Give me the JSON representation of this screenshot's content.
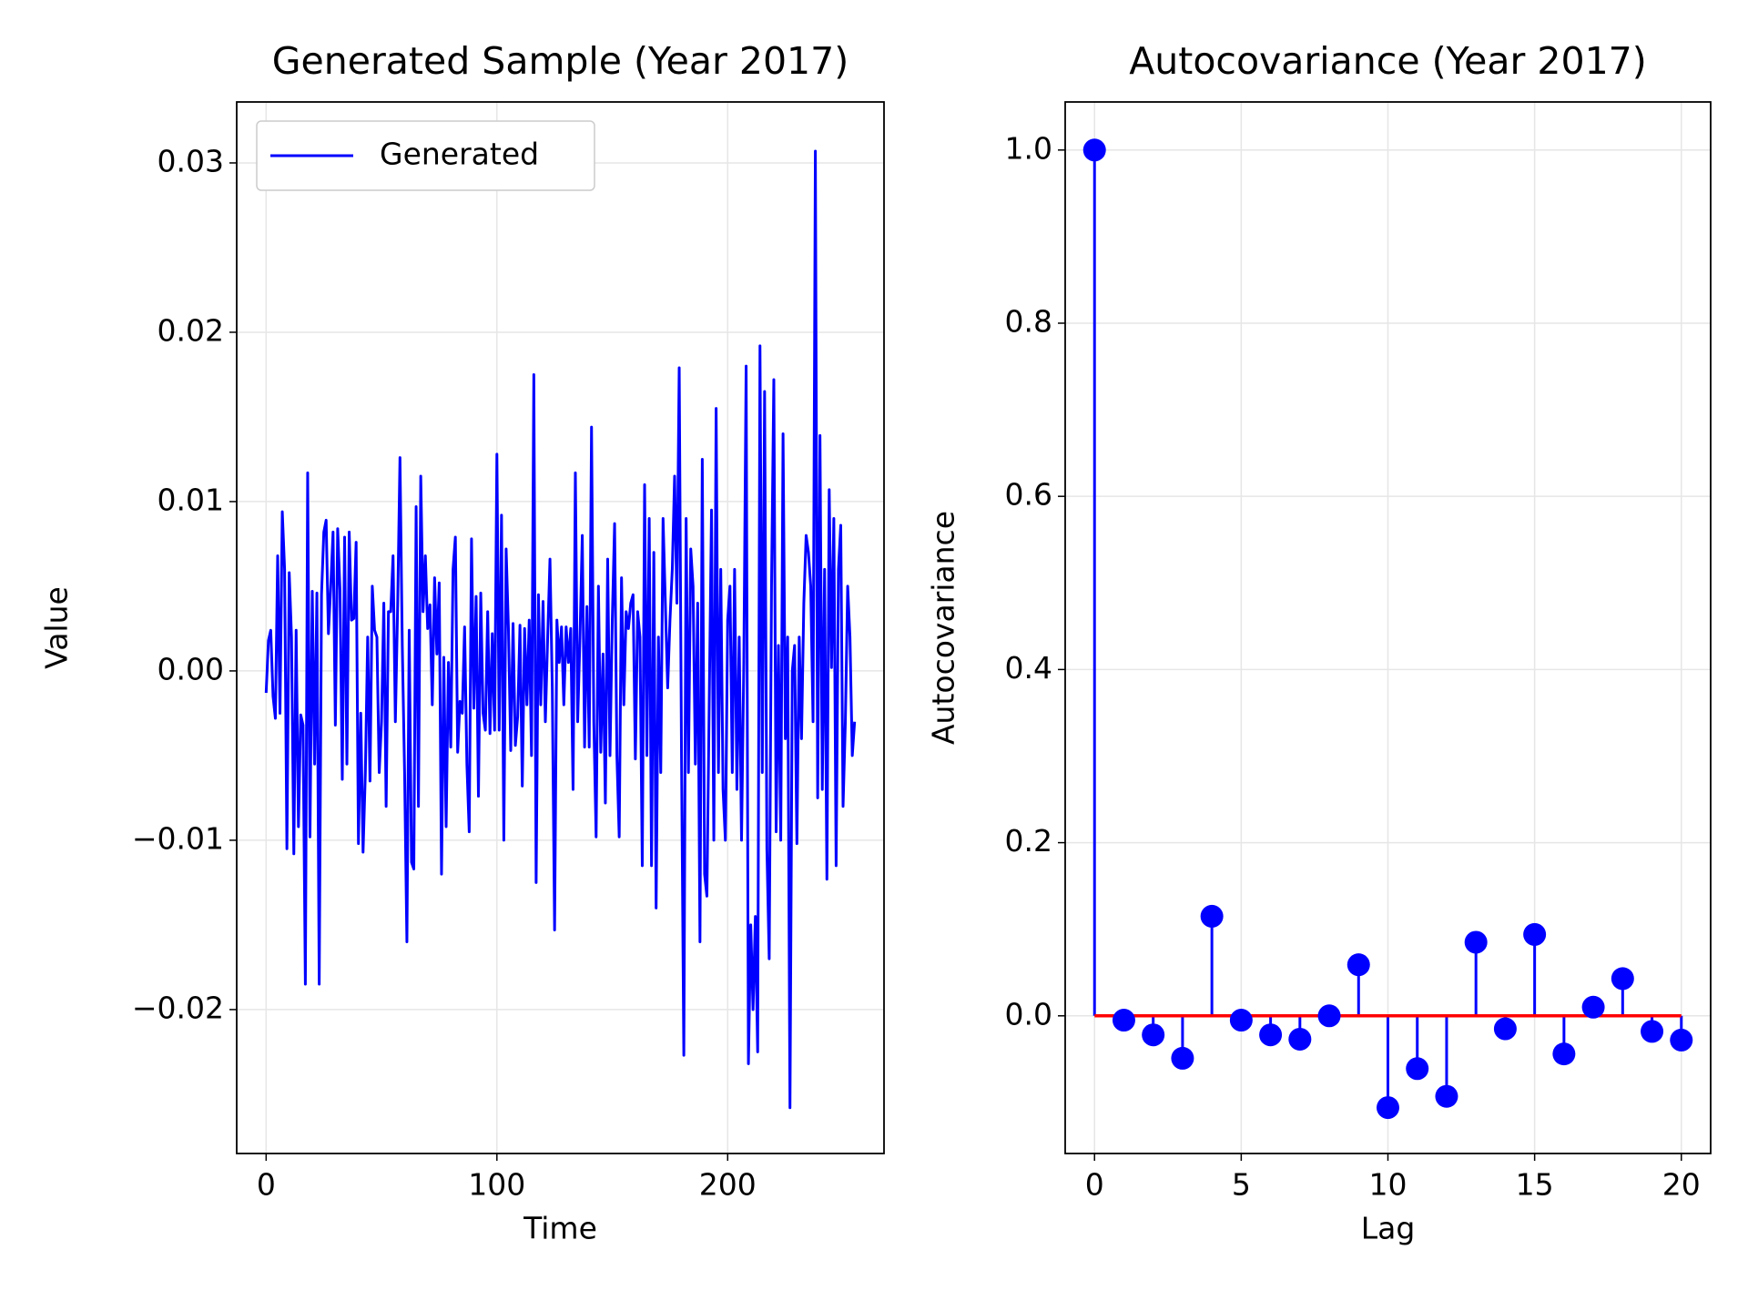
{
  "chart_data": [
    {
      "type": "line",
      "title": "Generated Sample (Year 2017)",
      "xlabel": "Time",
      "ylabel": "Value",
      "x": [
        0,
        1,
        2,
        3,
        4,
        5,
        6,
        7,
        8,
        9,
        10,
        11,
        12,
        13,
        14,
        15,
        16,
        17,
        18,
        19,
        20,
        21,
        22,
        23,
        24,
        25,
        26,
        27,
        28,
        29,
        30,
        31,
        32,
        33,
        34,
        35,
        36,
        37,
        38,
        39,
        40,
        41,
        42,
        43,
        44,
        45,
        46,
        47,
        48,
        49,
        50,
        51,
        52,
        53,
        54,
        55,
        56,
        57,
        58,
        59,
        60,
        61,
        62,
        63,
        64,
        65,
        66,
        67,
        68,
        69,
        70,
        71,
        72,
        73,
        74,
        75,
        76,
        77,
        78,
        79,
        80,
        81,
        82,
        83,
        84,
        85,
        86,
        87,
        88,
        89,
        90,
        91,
        92,
        93,
        94,
        95,
        96,
        97,
        98,
        99,
        100,
        101,
        102,
        103,
        104,
        105,
        106,
        107,
        108,
        109,
        110,
        111,
        112,
        113,
        114,
        115,
        116,
        117,
        118,
        119,
        120,
        121,
        122,
        123,
        124,
        125,
        126,
        127,
        128,
        129,
        130,
        131,
        132,
        133,
        134,
        135,
        136,
        137,
        138,
        139,
        140,
        141,
        142,
        143,
        144,
        145,
        146,
        147,
        148,
        149,
        150,
        151,
        152,
        153,
        154,
        155,
        156,
        157,
        158,
        159,
        160,
        161,
        162,
        163,
        164,
        165,
        166,
        167,
        168,
        169,
        170,
        171,
        172,
        173,
        174,
        175,
        176,
        177,
        178,
        179,
        180,
        181,
        182,
        183,
        184,
        185,
        186,
        187,
        188,
        189,
        190,
        191,
        192,
        193,
        194,
        195,
        196,
        197,
        198,
        199,
        200,
        201,
        202,
        203,
        204,
        205,
        206,
        207,
        208,
        209,
        210,
        211,
        212,
        213,
        214,
        215,
        216,
        217,
        218,
        219,
        220,
        221,
        222,
        223,
        224,
        225,
        226,
        227,
        228,
        229,
        230,
        231,
        232,
        233,
        234,
        235,
        236,
        237,
        238,
        239,
        240,
        241,
        242,
        243,
        244,
        245,
        246,
        247,
        248,
        249,
        250,
        251,
        252,
        253,
        254,
        255
      ],
      "series": [
        {
          "name": "Generated",
          "color": "#0000ff",
          "values": [
            -0.0013,
            0.0018,
            0.0024,
            -0.0015,
            -0.0028,
            0.0068,
            -0.0025,
            0.0094,
            0.006,
            -0.0105,
            0.0058,
            0.002,
            -0.0108,
            0.0024,
            -0.0092,
            -0.0026,
            -0.0032,
            -0.0185,
            0.0117,
            -0.0098,
            0.0047,
            -0.0055,
            0.0046,
            -0.0185,
            0.0045,
            0.0082,
            0.0089,
            0.0022,
            0.005,
            0.0082,
            -0.0032,
            0.0084,
            0.0048,
            -0.0064,
            0.0079,
            -0.0055,
            0.0082,
            0.003,
            0.0031,
            0.0076,
            -0.0102,
            -0.0025,
            -0.0107,
            -0.006,
            0.002,
            -0.0065,
            0.005,
            0.0024,
            0.002,
            -0.006,
            -0.003,
            0.004,
            -0.008,
            0.0035,
            0.0035,
            0.0068,
            -0.003,
            0.0039,
            0.0126,
            0.0015,
            -0.006,
            -0.016,
            0.0024,
            -0.0113,
            -0.0117,
            0.0097,
            -0.008,
            0.0115,
            0.0035,
            0.0068,
            0.0025,
            0.0039,
            -0.002,
            0.0055,
            0.001,
            0.0052,
            -0.012,
            0.0008,
            -0.0092,
            0.0005,
            -0.0045,
            0.006,
            0.0079,
            -0.0048,
            -0.0018,
            -0.0025,
            0.0026,
            -0.0055,
            -0.0095,
            0.0078,
            -0.0022,
            0.0044,
            -0.0074,
            0.0046,
            -0.0025,
            -0.0035,
            0.0035,
            -0.0037,
            0.0022,
            -0.0035,
            0.0128,
            -0.0035,
            0.0092,
            -0.01,
            0.0072,
            0.0025,
            -0.0047,
            0.0028,
            -0.0044,
            -0.0027,
            0.0027,
            -0.0068,
            0.0025,
            -0.002,
            0.003,
            -0.005,
            0.0175,
            -0.0125,
            0.0045,
            -0.002,
            0.0041,
            -0.003,
            0.002,
            0.0066,
            -0.001,
            -0.0153,
            0.003,
            0.0005,
            0.0026,
            -0.002,
            0.0026,
            0.0005,
            0.0025,
            -0.007,
            0.0117,
            -0.003,
            0.002,
            0.008,
            -0.0045,
            0.0038,
            -0.0045,
            0.0144,
            -0.003,
            -0.0098,
            0.005,
            -0.0048,
            0.001,
            -0.0078,
            0.0066,
            -0.005,
            0.003,
            0.0087,
            -0.005,
            -0.0098,
            0.0055,
            -0.002,
            0.0035,
            0.0025,
            0.004,
            0.0045,
            -0.0052,
            0.0035,
            0.002,
            -0.0115,
            0.011,
            -0.005,
            0.009,
            -0.0115,
            0.007,
            -0.014,
            0.002,
            -0.006,
            0.009,
            0.004,
            -0.001,
            0.003,
            0.006,
            0.0115,
            0.004,
            0.0179,
            -0.005,
            -0.0227,
            0.009,
            -0.006,
            0.0072,
            0.005,
            -0.0055,
            0.004,
            -0.016,
            0.0125,
            -0.012,
            -0.0133,
            -0.002,
            0.0095,
            -0.01,
            0.0155,
            -0.006,
            0.006,
            -0.007,
            -0.01,
            0.003,
            0.005,
            -0.006,
            0.006,
            -0.007,
            0.002,
            -0.01,
            0.0005,
            0.018,
            -0.0232,
            -0.015,
            -0.02,
            -0.0145,
            -0.0225,
            0.0192,
            -0.006,
            0.0165,
            -0.0105,
            -0.017,
            0.005,
            0.0172,
            -0.0095,
            0.0015,
            -0.01,
            0.014,
            -0.004,
            0.002,
            -0.0258,
            0.0,
            0.0015,
            -0.0102,
            0.002,
            -0.004,
            0.004,
            0.008,
            0.007,
            0.005,
            -0.003,
            0.0307,
            -0.0075,
            0.0139,
            -0.007,
            0.006,
            -0.0123,
            0.0107,
            0.0002,
            0.009,
            -0.0115,
            0.006,
            0.0086,
            -0.008,
            -0.003,
            0.005,
            0.002,
            -0.005,
            -0.003
          ]
        }
      ],
      "xlim": [
        -12.75,
        267.75
      ],
      "xticks": [
        0,
        100,
        200
      ],
      "ylim": [
        -0.0285,
        0.0336
      ],
      "yticks": [
        {
          "value": -0.02,
          "label": "−0.02"
        },
        {
          "value": -0.01,
          "label": "−0.01"
        },
        {
          "value": 0,
          "label": "0.00"
        },
        0.01,
        0.02,
        0.03
      ],
      "grid": true,
      "legend": "upper left"
    },
    {
      "type": "stem",
      "title": "Autocovariance (Year 2017)",
      "xlabel": "Lag",
      "ylabel": "Autocovariance",
      "x": [
        0,
        1,
        2,
        3,
        4,
        5,
        6,
        7,
        8,
        9,
        10,
        11,
        12,
        13,
        14,
        15,
        16,
        17,
        18,
        19,
        20
      ],
      "values": [
        1.0,
        -0.005,
        -0.022,
        -0.049,
        0.115,
        -0.005,
        -0.022,
        -0.027,
        0.0,
        0.059,
        -0.106,
        -0.061,
        -0.093,
        0.085,
        -0.015,
        0.094,
        -0.044,
        0.01,
        0.043,
        -0.018,
        -0.028
      ],
      "color": "#0000ff",
      "baseline_color": "#ff0000",
      "xlim": [
        -1,
        21
      ],
      "xticks": [
        0,
        5,
        10,
        15,
        20
      ],
      "ylim": [
        -0.159,
        1.0555
      ],
      "yticks": [
        {
          "value": 0,
          "label": "0.0"
        },
        0.2,
        0.4,
        0.6,
        0.8,
        {
          "value": 1,
          "label": "1.0"
        }
      ],
      "grid": true
    }
  ]
}
